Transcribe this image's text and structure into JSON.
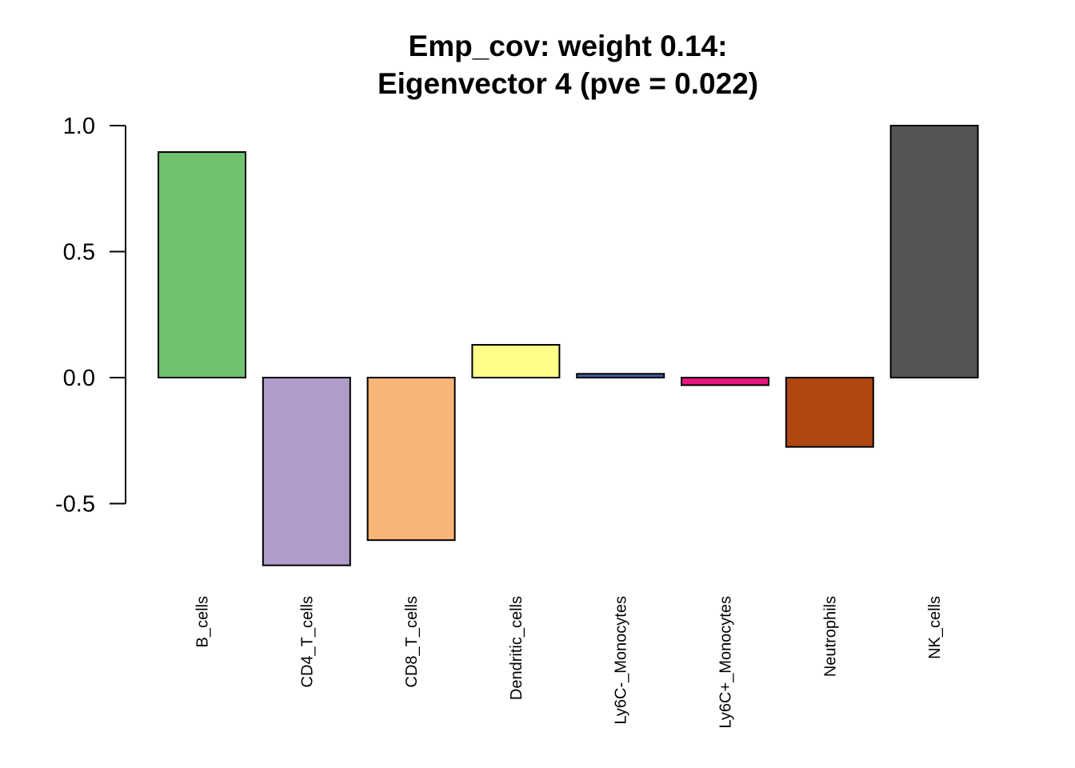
{
  "chart_data": {
    "type": "bar",
    "title_line1": "Emp_cov: weight 0.14:",
    "title_line2": "Eigenvector 4 (pve = 0.022)",
    "xlabel": "",
    "ylabel": "",
    "ylim": [
      -0.75,
      1.0
    ],
    "yticks": [
      1.0,
      0.5,
      0.0,
      -0.5
    ],
    "ytick_labels": [
      "1.0",
      "0.5",
      "0.0",
      "-0.5"
    ],
    "grid": false,
    "categories": [
      "B_cells",
      "CD4_T_cells",
      "CD8_T_cells",
      "Dendritic_cells",
      "Ly6C-_Monocytes",
      "Ly6C+_Monocytes",
      "Neutrophils",
      "NK_cells"
    ],
    "values": [
      0.895,
      -0.745,
      -0.645,
      0.13,
      0.015,
      -0.03,
      -0.275,
      1.0
    ],
    "colors": [
      "#71C26E",
      "#AF9CCB",
      "#F9B577",
      "#FFFF88",
      "#3E5DA6",
      "#E7157D",
      "#B04712",
      "#545454"
    ]
  }
}
